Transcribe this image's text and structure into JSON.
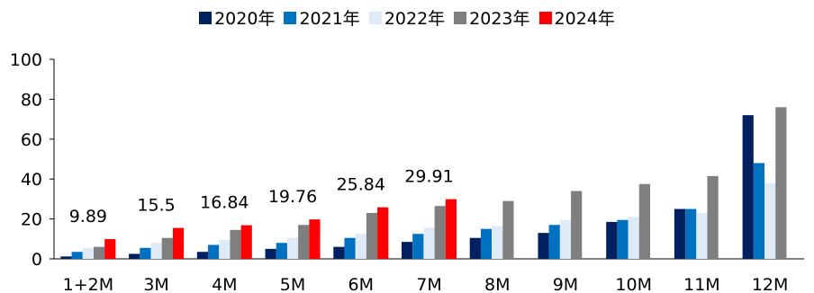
{
  "chart_data": {
    "type": "bar",
    "categories": [
      "1+2M",
      "3M",
      "4M",
      "5M",
      "6M",
      "7M",
      "8M",
      "9M",
      "10M",
      "11M",
      "12M"
    ],
    "series": [
      {
        "name": "2020年",
        "color": "#002060",
        "values": [
          1.2,
          2.5,
          3.5,
          5,
          6,
          8.5,
          10.5,
          13,
          18.5,
          25,
          72
        ]
      },
      {
        "name": "2021年",
        "color": "#0070C0",
        "values": [
          3.5,
          5.5,
          7,
          8,
          10.5,
          12.5,
          15,
          17,
          19.5,
          25,
          48
        ]
      },
      {
        "name": "2022年",
        "color": "#DEEBF7",
        "values": [
          5.5,
          8,
          9.5,
          10.5,
          12.5,
          15.5,
          16.5,
          19.5,
          21,
          23,
          38
        ]
      },
      {
        "name": "2023年",
        "color": "#7F7F7F",
        "values": [
          6,
          10.5,
          14.5,
          17,
          23,
          26.5,
          29,
          34,
          37.5,
          41.5,
          76
        ]
      },
      {
        "name": "2024年",
        "color": "#FF0000",
        "values": [
          9.89,
          15.5,
          16.84,
          19.76,
          25.84,
          29.91,
          null,
          null,
          null,
          null,
          null
        ]
      }
    ],
    "data_labels": [
      "9.89",
      "15.5",
      "16.84",
      "19.76",
      "25.84",
      "29.91"
    ],
    "y_ticks": [
      "0",
      "20",
      "40",
      "60",
      "80",
      "100"
    ],
    "ylim": [
      0,
      100
    ],
    "legend_position": "top-center",
    "grid": false
  }
}
